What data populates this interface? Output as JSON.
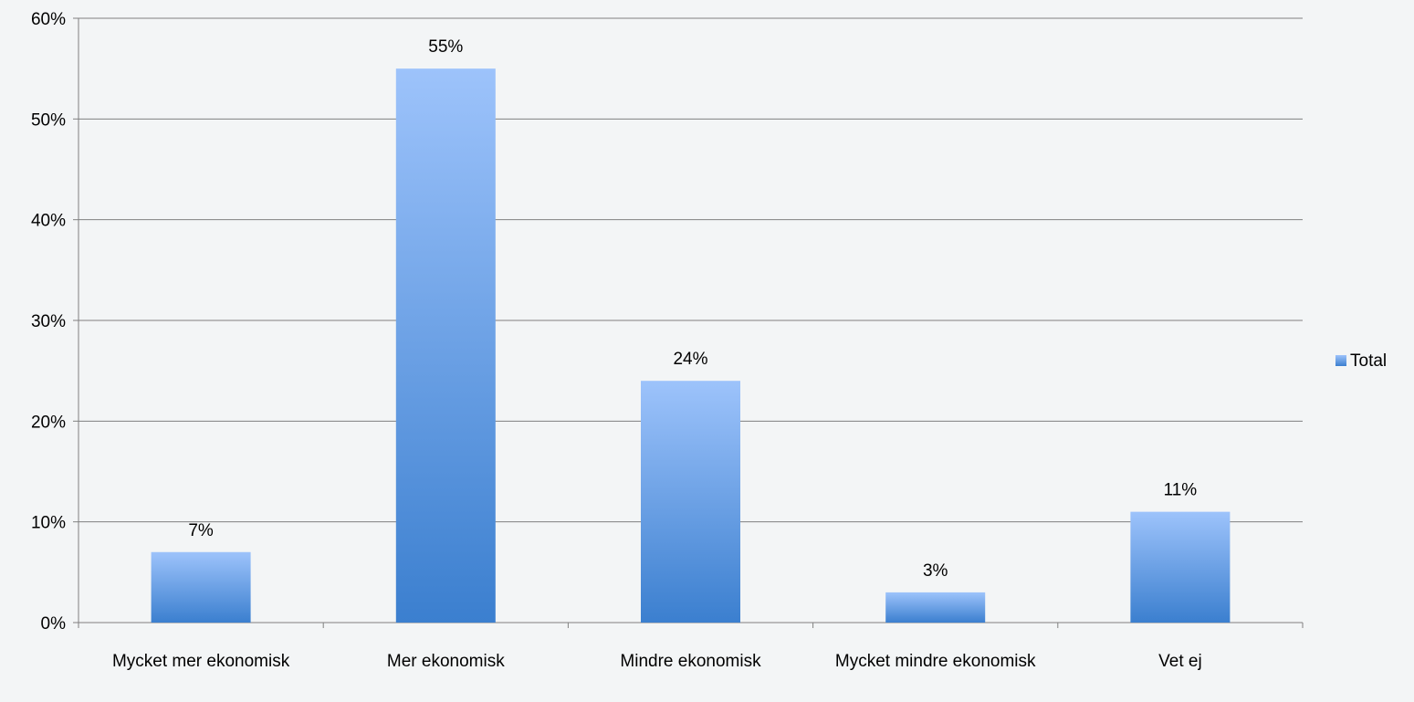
{
  "chart_data": {
    "type": "bar",
    "categories": [
      "Mycket mer ekonomisk",
      "Mer ekonomisk",
      "Mindre ekonomisk",
      "Mycket mindre ekonomisk",
      "Vet ej"
    ],
    "series": [
      {
        "name": "Total",
        "values": [
          7,
          55,
          24,
          3,
          11
        ],
        "labels": [
          "7%",
          "55%",
          "24%",
          "3%",
          "11%"
        ]
      }
    ],
    "y_ticks": [
      "0%",
      "10%",
      "20%",
      "30%",
      "40%",
      "50%",
      "60%"
    ],
    "ylim": [
      0,
      60
    ],
    "grid": true,
    "legend_position": "right",
    "title": "",
    "xlabel": "",
    "ylabel": "",
    "colors": {
      "bar_top": "#9dc3fb",
      "bar_bottom": "#3b7fcf",
      "grid": "#808080",
      "background": "#f3f5f6"
    }
  }
}
